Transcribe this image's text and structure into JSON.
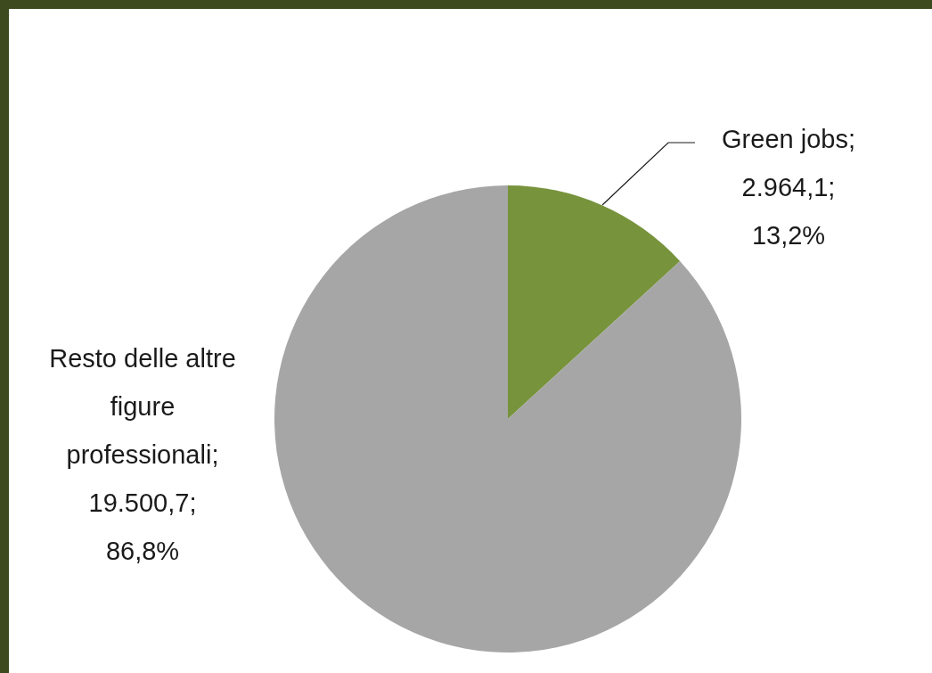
{
  "chart_data": {
    "type": "pie",
    "categories": [
      "Green jobs",
      "Resto delle altre figure professionali"
    ],
    "values": [
      2964.1,
      19500.7
    ],
    "colors": [
      "#77933c",
      "#a6a6a6"
    ],
    "value_labels": [
      "; 2.964,1; 13,2%",
      "; 19.500,7; 86,8%"
    ]
  }
}
